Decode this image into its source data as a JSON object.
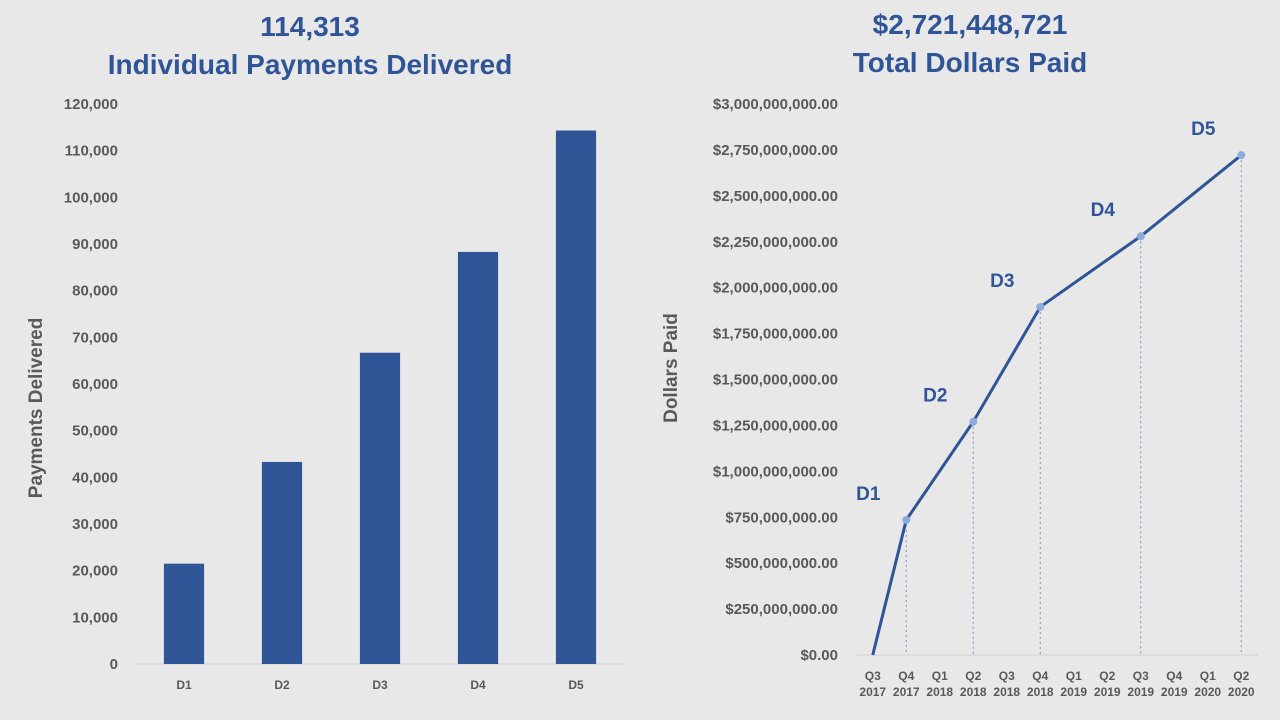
{
  "chart_data": [
    {
      "type": "bar",
      "title": "114,313",
      "subtitle": "Individual Payments Delivered",
      "xlabel": "",
      "ylabel": "Payments Delivered",
      "categories": [
        "D1",
        "D2",
        "D3",
        "D4",
        "D5"
      ],
      "values": [
        21500,
        43300,
        66700,
        88300,
        114313
      ],
      "ylim": [
        0,
        120000
      ],
      "yticks": [
        "0",
        "10,000",
        "20,000",
        "30,000",
        "40,000",
        "50,000",
        "60,000",
        "70,000",
        "80,000",
        "90,000",
        "100,000",
        "110,000",
        "120,000"
      ],
      "grid": false,
      "colors": {
        "bar": "#2f5597"
      }
    },
    {
      "type": "line",
      "title": "$2,721,448,721",
      "subtitle": "Total Dollars Paid",
      "xlabel": "",
      "ylabel": "Dollars Paid",
      "x": [
        "Q3 2017",
        "Q4 2017",
        "Q1 2018",
        "Q2 2018",
        "Q3 2018",
        "Q4 2018",
        "Q1 2019",
        "Q2 2019",
        "Q3 2019",
        "Q4 2019",
        "Q1 2020",
        "Q2 2020"
      ],
      "x_tick_lines": [
        [
          "Q3",
          "2017"
        ],
        [
          "Q4",
          "2017"
        ],
        [
          "Q1",
          "2018"
        ],
        [
          "Q2",
          "2018"
        ],
        [
          "Q3",
          "2018"
        ],
        [
          "Q4",
          "2018"
        ],
        [
          "Q1",
          "2019"
        ],
        [
          "Q2",
          "2019"
        ],
        [
          "Q3",
          "2019"
        ],
        [
          "Q4",
          "2019"
        ],
        [
          "Q1",
          "2020"
        ],
        [
          "Q2",
          "2020"
        ]
      ],
      "series": [
        {
          "points": [
            {
              "x": "Q3 2017",
              "y": 0
            },
            {
              "x": "Q4 2017",
              "y": 735000000
            },
            {
              "x": "Q2 2018",
              "y": 1270000000
            },
            {
              "x": "Q4 2018",
              "y": 1895000000
            },
            {
              "x": "Q3 2019",
              "y": 2280000000
            },
            {
              "x": "Q2 2020",
              "y": 2721448721
            }
          ]
        }
      ],
      "point_labels": [
        {
          "x": "Q4 2017",
          "label": "D1"
        },
        {
          "x": "Q2 2018",
          "label": "D2"
        },
        {
          "x": "Q4 2018",
          "label": "D3"
        },
        {
          "x": "Q3 2019",
          "label": "D4"
        },
        {
          "x": "Q2 2020",
          "label": "D5"
        }
      ],
      "ylim": [
        0,
        3000000000
      ],
      "yticks": [
        "$0.00",
        "$250,000,000.00",
        "$500,000,000.00",
        "$750,000,000.00",
        "$1,000,000,000.00",
        "$1,250,000,000.00",
        "$1,500,000,000.00",
        "$1,750,000,000.00",
        "$2,000,000,000.00",
        "$2,250,000,000.00",
        "$2,500,000,000.00",
        "$2,750,000,000.00",
        "$3,000,000,000.00"
      ],
      "drop_lines": "dotted",
      "grid": false,
      "colors": {
        "line": "#2f5597",
        "marker": "#8faadc"
      }
    }
  ]
}
